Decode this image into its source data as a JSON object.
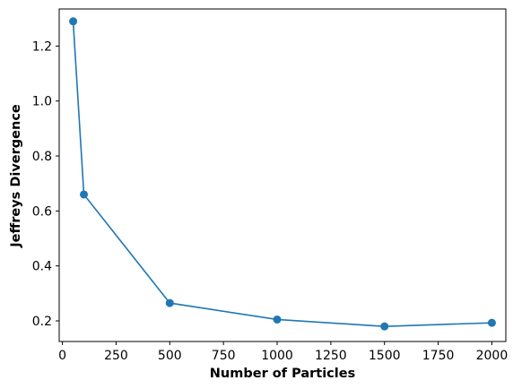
{
  "chart_data": {
    "type": "line",
    "xlabel": "Number of Particles",
    "ylabel": "Jeffreys Divergence",
    "xlim": [
      -15,
      2065
    ],
    "ylim": [
      0.125,
      1.335
    ],
    "xticks": [
      0,
      250,
      500,
      750,
      1000,
      1250,
      1500,
      1750,
      2000
    ],
    "yticks": [
      0.2,
      0.4,
      0.6,
      0.8,
      1.0,
      1.2
    ],
    "ytick_labels": [
      "0.2",
      "0.4",
      "0.6",
      "0.8",
      "1.0",
      "1.2"
    ],
    "grid": false,
    "series": [
      {
        "color": "#1f77b4",
        "marker": "circle",
        "x": [
          50,
          100,
          500,
          1000,
          1500,
          2000
        ],
        "y": [
          1.29,
          0.66,
          0.265,
          0.205,
          0.18,
          0.193
        ]
      }
    ]
  }
}
